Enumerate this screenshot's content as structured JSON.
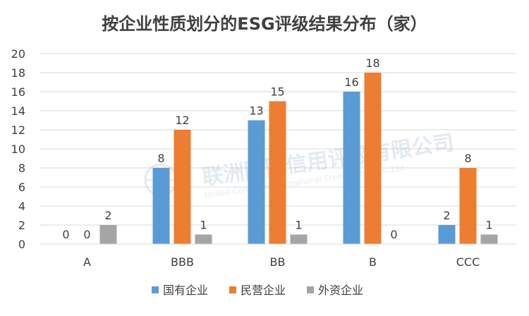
{
  "chart_data": {
    "type": "bar",
    "title": "按企业性质划分的ESG评级结果分布（家）",
    "categories": [
      "A",
      "BBB",
      "BB",
      "B",
      "CCC"
    ],
    "series": [
      {
        "name": "国有企业",
        "color": "#5B9BD5",
        "values": [
          0,
          8,
          13,
          16,
          2
        ]
      },
      {
        "name": "民营企业",
        "color": "#ED7D31",
        "values": [
          0,
          12,
          15,
          18,
          8
        ]
      },
      {
        "name": "外资企业",
        "color": "#A5A5A5",
        "values": [
          2,
          1,
          1,
          0,
          1
        ]
      }
    ],
    "yticks": [
      "0",
      "2",
      "4",
      "6",
      "8",
      "10",
      "12",
      "14",
      "16",
      "18",
      "20"
    ],
    "ylim": [
      0,
      20
    ],
    "grid": true,
    "legend_position": "bottom"
  },
  "watermark": {
    "name_cn": "联洲国际信用评级有限公司",
    "name_en": "United Continent International Credit Rating Co.,Ltd"
  }
}
